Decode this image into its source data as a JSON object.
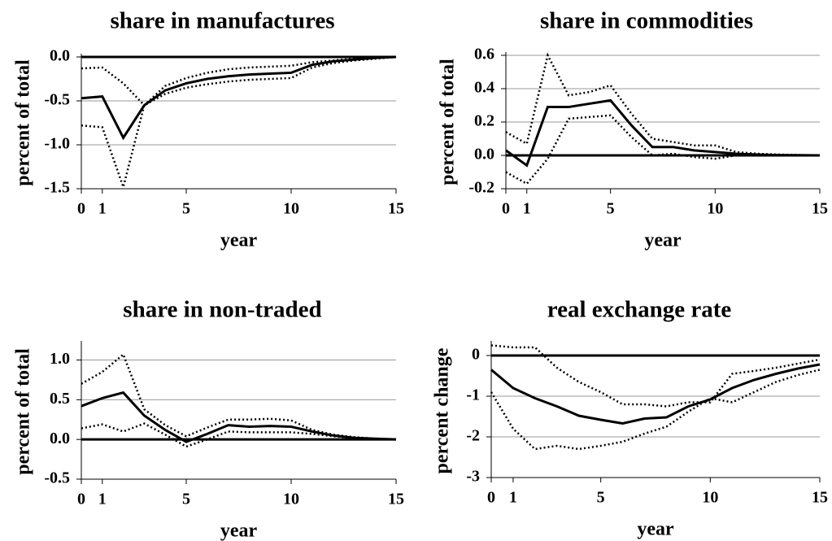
{
  "chart_data": [
    {
      "type": "line",
      "title": "share in manufactures",
      "xlabel": "year",
      "ylabel": "percent of total",
      "x": [
        0,
        1,
        2,
        3,
        4,
        5,
        6,
        7,
        8,
        9,
        10,
        11,
        12,
        13,
        14,
        15
      ],
      "xlim": [
        0,
        15
      ],
      "xticks": [
        0,
        1,
        5,
        10,
        15
      ],
      "ylim": [
        -1.5,
        0
      ],
      "yticks": [
        {
          "value": 0,
          "label": "0.0"
        },
        -0.5,
        {
          "value": -1,
          "label": "-1.0"
        },
        -1.5
      ],
      "grid": true,
      "series": [
        {
          "color": "#000000",
          "style": "solid",
          "values": [
            -0.47,
            -0.45,
            -0.92,
            -0.55,
            -0.38,
            -0.3,
            -0.25,
            -0.22,
            -0.2,
            -0.19,
            -0.18,
            -0.09,
            -0.05,
            -0.03,
            -0.01,
            0
          ]
        },
        {
          "color": "#000000",
          "style": "dotted",
          "values": [
            -0.13,
            -0.12,
            -0.3,
            -0.55,
            -0.33,
            -0.24,
            -0.18,
            -0.14,
            -0.12,
            -0.11,
            -0.1,
            -0.06,
            -0.04,
            -0.02,
            -0.01,
            0
          ]
        },
        {
          "color": "#000000",
          "style": "dotted",
          "values": [
            -0.78,
            -0.8,
            -1.48,
            -0.55,
            -0.42,
            -0.35,
            -0.31,
            -0.28,
            -0.26,
            -0.25,
            -0.24,
            -0.12,
            -0.07,
            -0.04,
            -0.02,
            0
          ]
        }
      ]
    },
    {
      "type": "line",
      "title": "share in commodities",
      "xlabel": "year",
      "ylabel": "percent of total",
      "x": [
        0,
        1,
        2,
        3,
        4,
        5,
        6,
        7,
        8,
        9,
        10,
        11,
        12,
        13,
        14,
        15
      ],
      "xlim": [
        0,
        15
      ],
      "xticks": [
        0,
        1,
        5,
        10,
        15
      ],
      "ylim": [
        -0.2,
        0.6
      ],
      "yticks": [
        -0.2,
        {
          "value": 0,
          "label": "0.0"
        },
        0.2,
        0.4,
        0.6
      ],
      "grid": true,
      "series": [
        {
          "color": "#000000",
          "style": "solid",
          "values": [
            0.03,
            -0.06,
            0.29,
            0.29,
            0.31,
            0.33,
            0.18,
            0.05,
            0.05,
            0.03,
            0.02,
            0.01,
            0.005,
            0.002,
            0.001,
            0
          ]
        },
        {
          "color": "#000000",
          "style": "dotted",
          "values": [
            0.14,
            0.07,
            0.6,
            0.36,
            0.38,
            0.42,
            0.25,
            0.1,
            0.08,
            0.06,
            0.06,
            0.02,
            0.01,
            0.005,
            0.002,
            0
          ]
        },
        {
          "color": "#000000",
          "style": "dotted",
          "values": [
            -0.1,
            -0.17,
            -0.02,
            0.22,
            0.23,
            0.24,
            0.11,
            0,
            0.01,
            -0.01,
            -0.02,
            0,
            0,
            0,
            0,
            0
          ]
        }
      ]
    },
    {
      "type": "line",
      "title": "share in non-traded",
      "xlabel": "year",
      "ylabel": "percent of total",
      "x": [
        0,
        1,
        2,
        3,
        4,
        5,
        6,
        7,
        8,
        9,
        10,
        11,
        12,
        13,
        14,
        15
      ],
      "xlim": [
        0,
        15
      ],
      "xticks": [
        0,
        1,
        5,
        10,
        15
      ],
      "ylim": [
        -0.5,
        1.2
      ],
      "yticks": [
        -0.5,
        {
          "value": 0,
          "label": "0.0"
        },
        0.5,
        {
          "value": 1,
          "label": "1.0"
        }
      ],
      "grid": true,
      "series": [
        {
          "color": "#000000",
          "style": "solid",
          "values": [
            0.42,
            0.52,
            0.59,
            0.3,
            0.12,
            -0.03,
            0.07,
            0.18,
            0.16,
            0.17,
            0.16,
            0.1,
            0.05,
            0.02,
            0.01,
            0
          ]
        },
        {
          "color": "#000000",
          "style": "dotted",
          "values": [
            0.7,
            0.85,
            1.07,
            0.38,
            0.18,
            0.04,
            0.15,
            0.25,
            0.25,
            0.26,
            0.24,
            0.12,
            0.06,
            0.03,
            0.01,
            0
          ]
        },
        {
          "color": "#000000",
          "style": "dotted",
          "values": [
            0.14,
            0.19,
            0.1,
            0.2,
            0.06,
            -0.09,
            0,
            0.1,
            0.09,
            0.09,
            0.09,
            0.07,
            0.04,
            0.02,
            0.01,
            0
          ]
        }
      ]
    },
    {
      "type": "line",
      "title": "real exchange rate",
      "xlabel": "year",
      "ylabel": "percent change",
      "x": [
        0,
        1,
        2,
        3,
        4,
        5,
        6,
        7,
        8,
        9,
        10,
        11,
        12,
        13,
        14,
        15
      ],
      "xlim": [
        0,
        15
      ],
      "xticks": [
        0,
        1,
        5,
        10,
        15
      ],
      "ylim": [
        -3,
        0.28
      ],
      "yticks": [
        -3,
        -2,
        -1,
        0
      ],
      "grid": true,
      "series": [
        {
          "color": "#000000",
          "style": "solid",
          "values": [
            -0.35,
            -0.8,
            -1.05,
            -1.25,
            -1.48,
            -1.58,
            -1.67,
            -1.55,
            -1.52,
            -1.25,
            -1.08,
            -0.8,
            -0.6,
            -0.45,
            -0.32,
            -0.22
          ]
        },
        {
          "color": "#000000",
          "style": "dotted",
          "values": [
            0.25,
            0.2,
            0.2,
            -0.3,
            -0.65,
            -0.9,
            -1.2,
            -1.2,
            -1.25,
            -1.15,
            -1.15,
            -0.45,
            -0.38,
            -0.3,
            -0.2,
            -0.1
          ]
        },
        {
          "color": "#000000",
          "style": "dotted",
          "values": [
            -0.9,
            -1.8,
            -2.3,
            -2.22,
            -2.3,
            -2.22,
            -2.12,
            -1.92,
            -1.75,
            -1.38,
            -1.05,
            -1.15,
            -0.9,
            -0.65,
            -0.48,
            -0.35
          ]
        }
      ]
    }
  ]
}
